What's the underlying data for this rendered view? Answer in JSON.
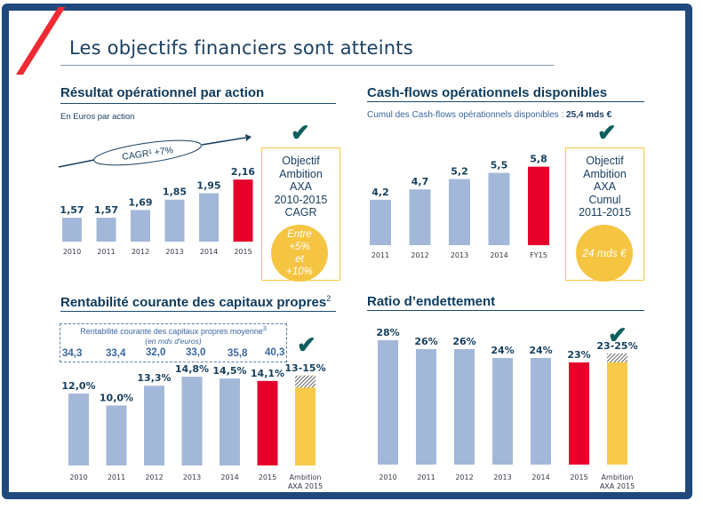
{
  "page": {
    "title": "Les objectifs financiers sont atteints"
  },
  "colors": {
    "frame": "#1f497d",
    "accent_red": "#e4002b",
    "bar_blue": "#a3b8d9",
    "ambition_yellow": "#f7ca4a",
    "check_green": "#0f5e5e",
    "text_dark": "#17405f"
  },
  "sections": {
    "eps": {
      "title": "Résultat opérationnel par action",
      "subtitle": "En Euros par action",
      "cagr_label": "CAGR¹ +7%",
      "objective": {
        "lines": [
          "Objectif",
          "Ambition",
          "AXA",
          "2010-2015",
          "CAGR"
        ],
        "circle_lines": [
          "Entre",
          "+5%",
          "et",
          "+10%"
        ],
        "icon": "check-icon"
      }
    },
    "cashflow": {
      "title": "Cash-flows opérationnels disponibles",
      "subtitle_prefix": "Cumul des Cash-flows opérationnels disponibles : ",
      "subtitle_value": "25,4 mds €",
      "objective": {
        "lines": [
          "Objectif",
          "Ambition",
          "AXA",
          "Cumul",
          "2011-2015"
        ],
        "circle_text": "24 mds €",
        "icon": "check-icon"
      }
    },
    "roe": {
      "title": "Rentabilité courante des capitaux propres",
      "title_sup": "2",
      "avg_box_title": "Rentabilité courante des capitaux propres moyenne",
      "avg_box_sup": "3",
      "avg_box_subtitle": "(en mds d'euros)",
      "avg_values": [
        "34,3",
        "33,4",
        "32,0",
        "33,0",
        "35,8",
        "40,3"
      ],
      "icon": "check-icon"
    },
    "debt": {
      "title": "Ratio d’endettement",
      "icon": "check-icon"
    }
  },
  "chart_data": [
    {
      "type": "bar",
      "title": "Résultat opérationnel par action",
      "ylabel": "En Euros par action",
      "categories": [
        "2010",
        "2011",
        "2012",
        "2013",
        "2014",
        "2015"
      ],
      "values": [
        1.57,
        1.57,
        1.69,
        1.85,
        1.95,
        2.16
      ],
      "labels": [
        "1,57",
        "1,57",
        "1,69",
        "1,85",
        "1,95",
        "2,16"
      ],
      "highlight": [
        "2015"
      ],
      "annotation": "CAGR¹ +7%",
      "ylim": [
        1.2,
        2.3
      ]
    },
    {
      "type": "bar",
      "title": "Cash-flows opérationnels disponibles",
      "categories": [
        "2011",
        "2012",
        "2013",
        "2014",
        "FY15"
      ],
      "values": [
        4.2,
        4.7,
        5.2,
        5.5,
        5.8
      ],
      "labels": [
        "4,2",
        "4,7",
        "5,2",
        "5,5",
        "5,8"
      ],
      "highlight": [
        "FY15"
      ],
      "ylim": [
        2.0,
        6.3
      ]
    },
    {
      "type": "bar",
      "title": "Rentabilité courante des capitaux propres",
      "categories": [
        "2010",
        "2011",
        "2012",
        "2013",
        "2014",
        "2015",
        "Ambition AXA 2015"
      ],
      "values": [
        12.0,
        10.0,
        13.3,
        14.8,
        14.5,
        14.1,
        15.0
      ],
      "range_low": 13.0,
      "labels": [
        "12,0%",
        "10,0%",
        "13,3%",
        "14,8%",
        "14,5%",
        "14,1%",
        "13-15%"
      ],
      "highlight": [
        "2015"
      ],
      "ambition": [
        "Ambition AXA 2015"
      ],
      "ylim": [
        0,
        16
      ]
    },
    {
      "type": "bar",
      "title": "Ratio d’endettement",
      "categories": [
        "2010",
        "2011",
        "2012",
        "2013",
        "2014",
        "2015",
        "Ambition AXA 2015"
      ],
      "values": [
        28,
        26,
        26,
        24,
        24,
        23,
        25
      ],
      "range_low": 23,
      "labels": [
        "28%",
        "26%",
        "26%",
        "24%",
        "24%",
        "23%",
        "23-25%"
      ],
      "highlight": [
        "2015"
      ],
      "ambition": [
        "Ambition AXA 2015"
      ],
      "ylim": [
        0,
        30
      ]
    }
  ]
}
